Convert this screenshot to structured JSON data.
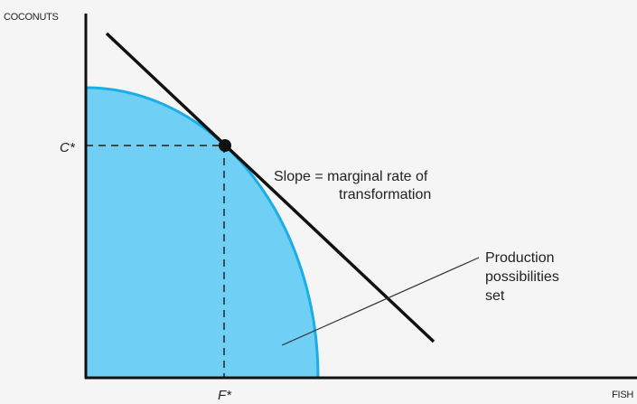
{
  "axes": {
    "y_label": "COCONUTS",
    "x_label": "FISH"
  },
  "points": {
    "y_label": "C*",
    "x_label": "F*"
  },
  "annotations": {
    "slope": [
      "Slope = marginal rate of",
      "transformation"
    ],
    "set": [
      "Production",
      "possibilities",
      "set"
    ]
  }
}
